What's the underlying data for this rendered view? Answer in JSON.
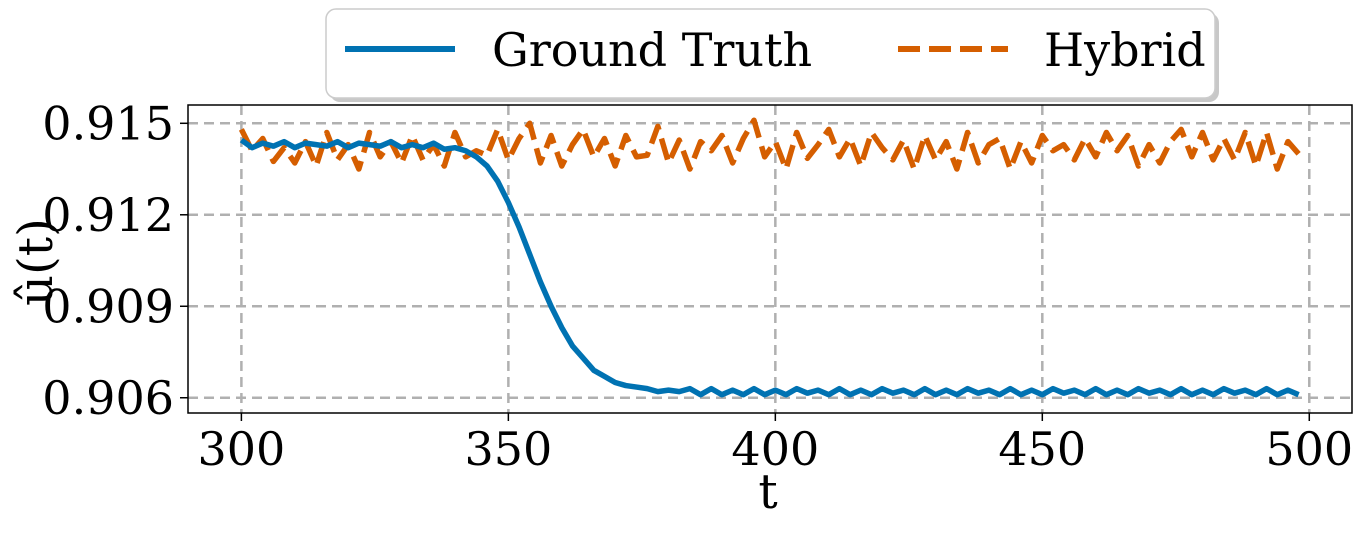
{
  "chart_data": {
    "type": "line",
    "title": "",
    "xlabel": "t",
    "ylabel": "û(t)",
    "xlim": [
      290,
      508
    ],
    "ylim": [
      0.9055,
      0.9156
    ],
    "xticks": [
      300,
      350,
      400,
      450,
      500
    ],
    "xtick_labels": [
      "300",
      "350",
      "400",
      "450",
      "500"
    ],
    "yticks": [
      0.906,
      0.909,
      0.912,
      0.915
    ],
    "ytick_labels": [
      "0.906",
      "0.909",
      "0.912",
      "0.915"
    ],
    "grid": true,
    "legend_position": "top-center-outside",
    "series": [
      {
        "name": "Ground Truth",
        "color": "#0072B2",
        "style": "solid",
        "x": [
          300,
          302,
          304,
          306,
          308,
          310,
          312,
          314,
          316,
          318,
          320,
          322,
          324,
          326,
          328,
          330,
          332,
          334,
          336,
          338,
          340,
          342,
          344,
          346,
          348,
          350,
          352,
          354,
          356,
          358,
          360,
          362,
          364,
          366,
          368,
          370,
          372,
          374,
          376,
          378,
          380,
          382,
          384,
          386,
          388,
          390,
          392,
          394,
          396,
          398,
          400,
          402,
          404,
          406,
          408,
          410,
          412,
          414,
          416,
          418,
          420,
          422,
          424,
          426,
          428,
          430,
          432,
          434,
          436,
          438,
          440,
          442,
          444,
          446,
          448,
          450,
          452,
          454,
          456,
          458,
          460,
          462,
          464,
          466,
          468,
          470,
          472,
          474,
          476,
          478,
          480,
          482,
          484,
          486,
          488,
          490,
          492,
          494,
          496,
          498
        ],
        "values": [
          0.91445,
          0.9142,
          0.91435,
          0.91425,
          0.9144,
          0.9142,
          0.91435,
          0.9143,
          0.91425,
          0.9144,
          0.9142,
          0.91435,
          0.9143,
          0.91425,
          0.9144,
          0.9142,
          0.9143,
          0.9142,
          0.91435,
          0.91415,
          0.9142,
          0.9141,
          0.9139,
          0.9136,
          0.9131,
          0.9124,
          0.9116,
          0.9107,
          0.9098,
          0.909,
          0.9083,
          0.9077,
          0.9073,
          0.9069,
          0.9067,
          0.9065,
          0.9064,
          0.90635,
          0.9063,
          0.9062,
          0.90625,
          0.9062,
          0.9063,
          0.9061,
          0.9063,
          0.9061,
          0.90625,
          0.9061,
          0.9063,
          0.9061,
          0.90625,
          0.9061,
          0.9063,
          0.90615,
          0.90625,
          0.9061,
          0.9063,
          0.9061,
          0.90625,
          0.9061,
          0.9063,
          0.90615,
          0.90625,
          0.9061,
          0.9063,
          0.9061,
          0.90625,
          0.9061,
          0.9063,
          0.90615,
          0.90625,
          0.9061,
          0.9063,
          0.9061,
          0.90625,
          0.9061,
          0.9063,
          0.90615,
          0.90625,
          0.9061,
          0.9063,
          0.9061,
          0.90625,
          0.9061,
          0.9063,
          0.90615,
          0.90625,
          0.9061,
          0.9063,
          0.9061,
          0.90625,
          0.9061,
          0.9063,
          0.90615,
          0.90625,
          0.9061,
          0.9063,
          0.9061,
          0.90625,
          0.9061
        ]
      },
      {
        "name": "Hybrid",
        "color": "#D55E00",
        "style": "dashed",
        "x": [
          300,
          302,
          304,
          306,
          308,
          310,
          312,
          314,
          316,
          318,
          320,
          322,
          324,
          326,
          328,
          330,
          332,
          334,
          336,
          338,
          340,
          342,
          344,
          346,
          348,
          350,
          352,
          354,
          356,
          358,
          360,
          362,
          364,
          366,
          368,
          370,
          372,
          374,
          376,
          378,
          380,
          382,
          384,
          386,
          388,
          390,
          392,
          394,
          396,
          398,
          400,
          402,
          404,
          406,
          408,
          410,
          412,
          414,
          416,
          418,
          420,
          422,
          424,
          426,
          428,
          430,
          432,
          434,
          436,
          438,
          440,
          442,
          444,
          446,
          448,
          450,
          452,
          454,
          456,
          458,
          460,
          462,
          464,
          466,
          468,
          470,
          472,
          474,
          476,
          478,
          480,
          482,
          484,
          486,
          488,
          490,
          492,
          494,
          496,
          498
        ],
        "values": [
          0.9148,
          0.9141,
          0.9145,
          0.91375,
          0.9142,
          0.9137,
          0.9144,
          0.9136,
          0.9147,
          0.9138,
          0.9143,
          0.9135,
          0.9147,
          0.9139,
          0.9144,
          0.9137,
          0.9146,
          0.9138,
          0.9143,
          0.9136,
          0.9147,
          0.9139,
          0.9141,
          0.91395,
          0.9148,
          0.9138,
          0.9145,
          0.915,
          0.9137,
          0.9146,
          0.9136,
          0.9143,
          0.9148,
          0.9139,
          0.9145,
          0.9136,
          0.9146,
          0.9139,
          0.91395,
          0.9149,
          0.9137,
          0.91445,
          0.9135,
          0.9144,
          0.9141,
          0.9146,
          0.9137,
          0.9145,
          0.9151,
          0.9139,
          0.9144,
          0.9135,
          0.9147,
          0.91385,
          0.9143,
          0.9148,
          0.9139,
          0.9145,
          0.9136,
          0.9147,
          0.9142,
          0.9138,
          0.91445,
          0.9135,
          0.9146,
          0.9138,
          0.9144,
          0.9135,
          0.9147,
          0.9137,
          0.9143,
          0.9145,
          0.9135,
          0.9144,
          0.9137,
          0.9146,
          0.9141,
          0.9143,
          0.9138,
          0.9145,
          0.9139,
          0.9147,
          0.9141,
          0.9146,
          0.9136,
          0.9143,
          0.9137,
          0.9144,
          0.9148,
          0.9139,
          0.9147,
          0.9138,
          0.9145,
          0.9138,
          0.9147,
          0.9136,
          0.9147,
          0.9135,
          0.9144,
          0.914
        ]
      }
    ]
  }
}
